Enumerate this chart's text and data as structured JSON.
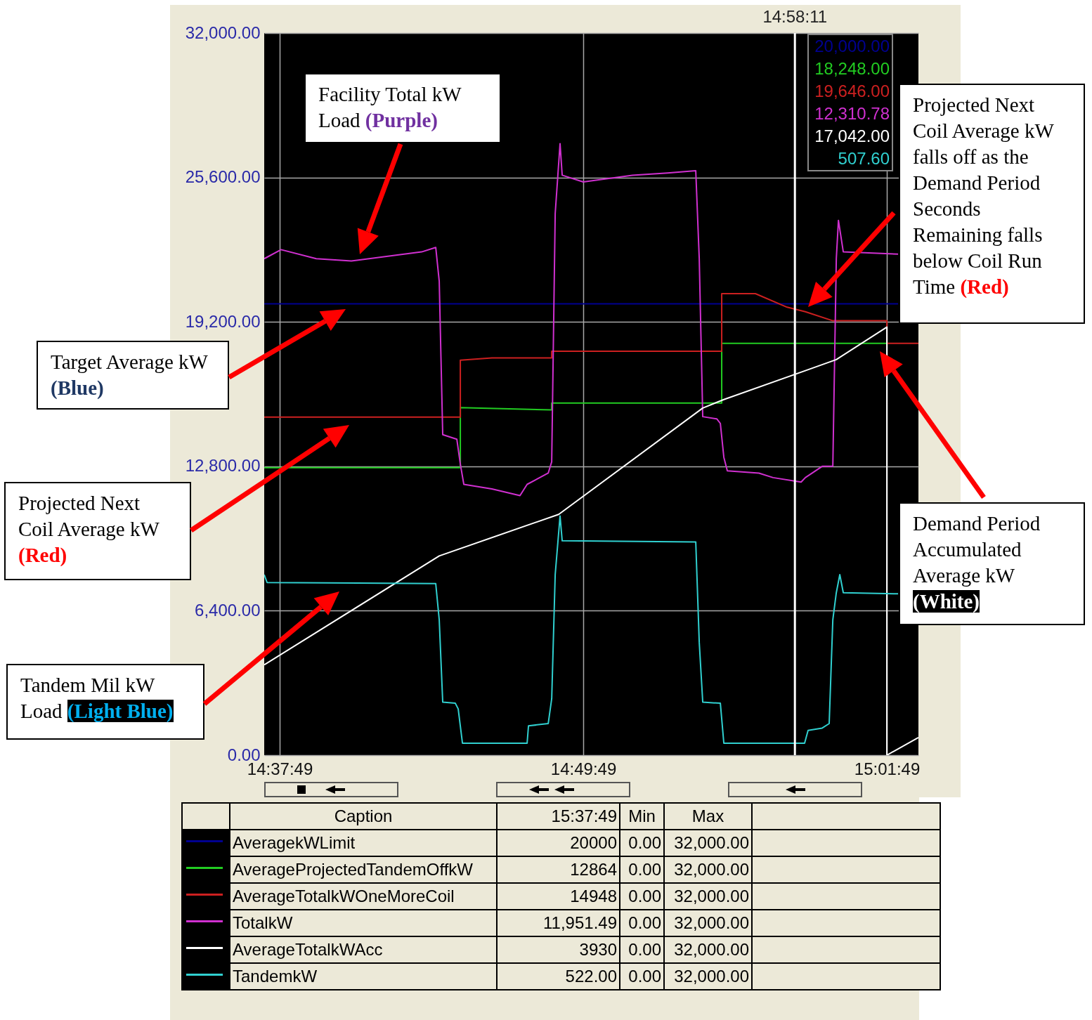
{
  "chart_data": {
    "type": "line",
    "xlim": [
      14.6201,
      15.0511
    ],
    "ylim": [
      0,
      32000
    ],
    "xticks": [
      {
        "value": 14.6303,
        "label": "14:37:49"
      },
      {
        "value": 14.8303,
        "label": "14:49:49"
      },
      {
        "value": 15.0303,
        "label": "15:01:49"
      }
    ],
    "yticks": [
      {
        "value": 0,
        "label": "0.00"
      },
      {
        "value": 6400,
        "label": "6,400.00"
      },
      {
        "value": 12800,
        "label": "12,800.00"
      },
      {
        "value": 19200,
        "label": "19,200.00"
      },
      {
        "value": 25600,
        "label": "25,600.00"
      },
      {
        "value": 32000,
        "label": "32,000.00"
      }
    ],
    "grid": true,
    "legend": "bottom",
    "series": [
      {
        "name": "AveragekWLimit",
        "color": "#000090",
        "x": [
          14.6201,
          15.0377
        ],
        "values": [
          20000,
          20000
        ]
      },
      {
        "name": "AverageProjectedTandemOffkW",
        "color": "#22cc22",
        "x": [
          14.6201,
          14.7493,
          14.7493,
          14.8095,
          14.8095,
          14.9215,
          14.9215,
          15.0303
        ],
        "values": [
          12740,
          12740,
          15400,
          15300,
          15600,
          15600,
          18250,
          18250
        ]
      },
      {
        "name": "AverageTotalkWOneMoreCoil",
        "color": "#cc2020",
        "x": [
          14.6201,
          14.7493,
          14.7493,
          14.7701,
          14.8095,
          14.8095,
          14.9215,
          14.9215,
          14.9437,
          14.9646,
          14.9766,
          14.9947,
          15.0303,
          15.0303,
          15.0511
        ],
        "values": [
          14980,
          14980,
          17500,
          17600,
          17600,
          17900,
          17900,
          20450,
          20450,
          19850,
          19650,
          19250,
          19250,
          18250,
          18250
        ]
      },
      {
        "name": "TotalkW",
        "color": "#d030d0",
        "x": [
          14.6201,
          14.6312,
          14.6544,
          14.6775,
          14.7007,
          14.7238,
          14.7331,
          14.7354,
          14.7377,
          14.747,
          14.7493,
          14.7516,
          14.7701,
          14.7886,
          14.7933,
          14.8072,
          14.8095,
          14.8118,
          14.815,
          14.8164,
          14.8303,
          14.8627,
          14.8859,
          14.9044,
          14.9067,
          14.909,
          14.9183,
          14.9206,
          14.9229,
          14.9252,
          14.946,
          14.9553,
          14.9738,
          14.9766,
          14.9877,
          14.9947,
          14.997,
          14.9984,
          15.0016,
          15.0377
        ],
        "values": [
          22000,
          22400,
          22000,
          21900,
          22100,
          22300,
          22500,
          21000,
          14200,
          14000,
          12900,
          12000,
          11800,
          11500,
          12000,
          12500,
          13000,
          24000,
          27100,
          25700,
          25400,
          25700,
          25800,
          25900,
          22000,
          15000,
          14900,
          14700,
          13200,
          12600,
          12500,
          12300,
          12100,
          12300,
          12800,
          12800,
          22000,
          23700,
          22300,
          22200
        ]
      },
      {
        "name": "AverageTotalkWAcc",
        "color": "#ffffff",
        "x": [
          14.6201,
          14.7354,
          14.8141,
          14.909,
          14.9229,
          14.9766,
          14.997,
          15.0303,
          15.0303,
          15.0511
        ],
        "values": [
          4000,
          8830,
          10670,
          15380,
          15760,
          17040,
          17530,
          18970,
          0,
          780
        ]
      },
      {
        "name": "TandemkW",
        "color": "#30d0d0",
        "x": [
          14.6201,
          14.622,
          14.7331,
          14.7354,
          14.7377,
          14.746,
          14.7479,
          14.7507,
          14.7933,
          14.7942,
          14.8072,
          14.8095,
          14.8118,
          14.815,
          14.8164,
          14.9044,
          14.9067,
          14.909,
          14.9206,
          14.9229,
          14.9761,
          14.9784,
          14.9877,
          14.9923,
          14.9947,
          14.997,
          14.9993,
          15.0016,
          15.0377
        ],
        "values": [
          8000,
          7650,
          7600,
          6000,
          2350,
          2300,
          2050,
          530,
          530,
          1300,
          1400,
          2500,
          8000,
          10600,
          9500,
          9450,
          5000,
          2350,
          2300,
          530,
          530,
          1100,
          1200,
          1400,
          6000,
          7200,
          8000,
          7200,
          7150
        ]
      }
    ],
    "ref_lines": [
      {
        "axis": "x",
        "value": 14.96972,
        "color": "#ffffff"
      }
    ],
    "annotations": [
      "Facility Total kW Load (Purple)",
      "Target Average kW (Blue)",
      "Projected Next Coil Average kW (Red)",
      "Tandem Mil kW Load (Light Blue)",
      "Projected Next Coil Average kW falls off as the Demand Period Seconds Remaining falls below Coil Run Time (Red)",
      "Demand Period Accumulated Average kW (White)",
      "Caption",
      "15:37:49",
      "Min",
      "Max",
      "20000",
      "0.00",
      "32,000.00",
      "12864",
      "0.00",
      "32,000.00",
      "14948",
      "0.00",
      "32,000.00",
      "11,951.49",
      "0.00",
      "32,000.00",
      "3930",
      "0.00",
      "32,000.00",
      "522.00",
      "0.00",
      "32,000.00",
      "20,000.00",
      "18,248.00",
      "19,646.00",
      "12,310.78",
      "17,042.00",
      "507.60",
      "14:58:11"
    ]
  }
}
